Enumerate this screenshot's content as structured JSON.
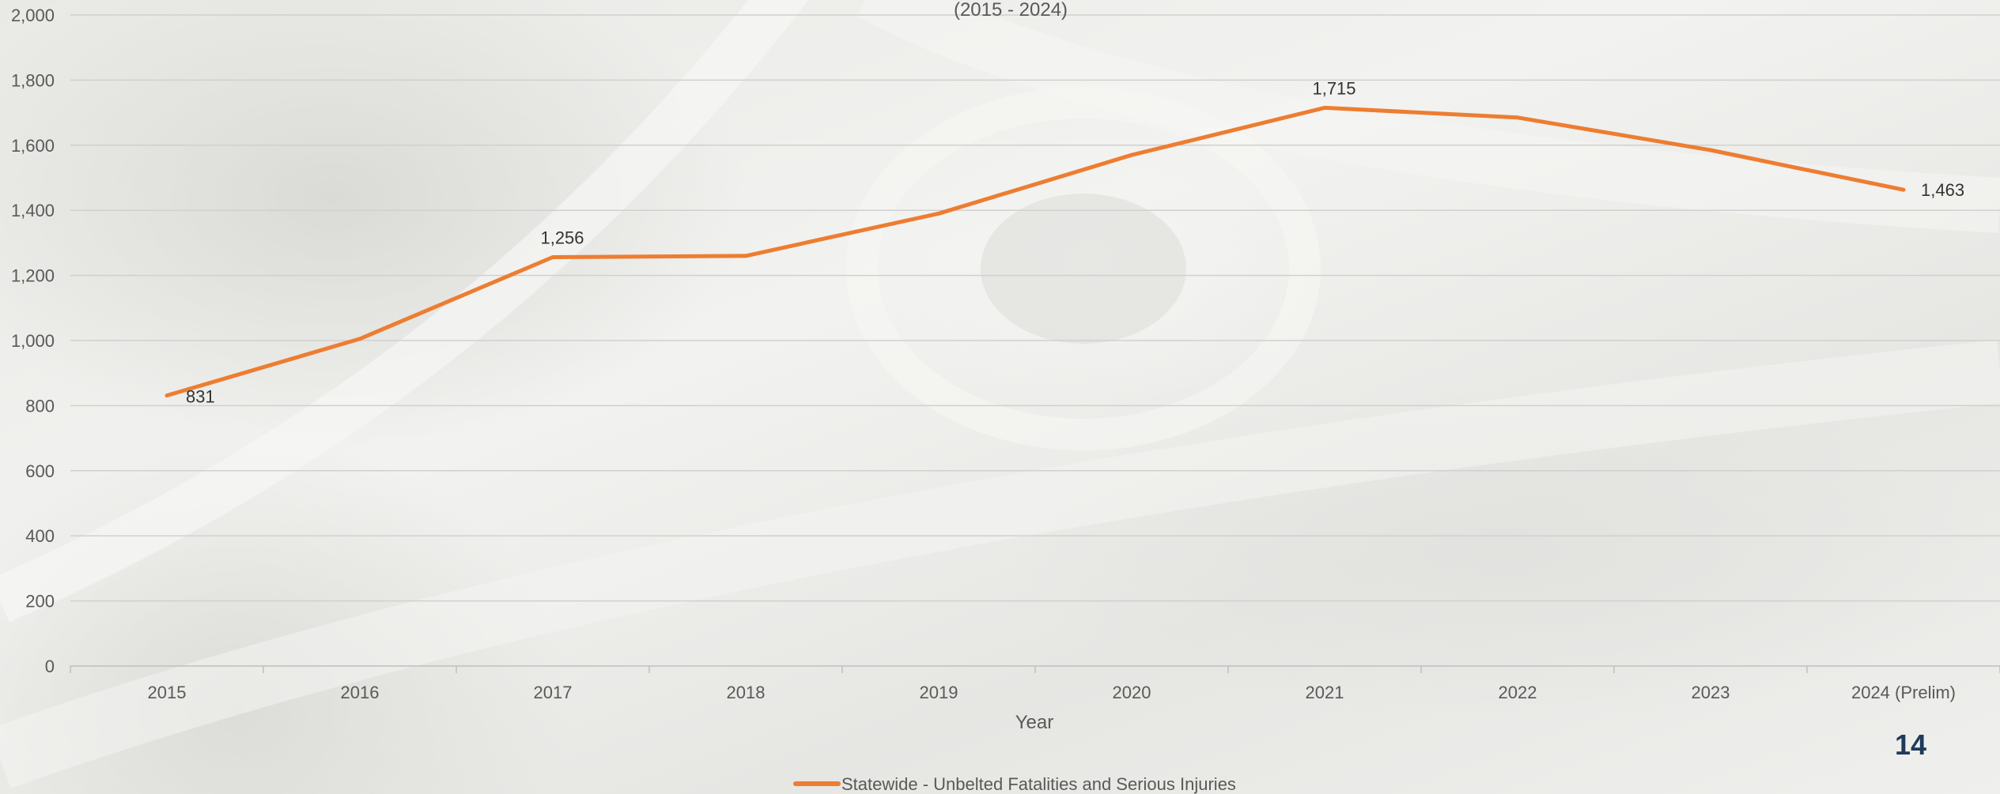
{
  "page": {
    "page_number": "14"
  },
  "chart_data": {
    "type": "line",
    "subtitle": "(2015 - 2024)",
    "xlabel": "Year",
    "ylabel": "",
    "categories": [
      "2015",
      "2016",
      "2017",
      "2018",
      "2019",
      "2020",
      "2021",
      "2022",
      "2023",
      "2024 (Prelim)"
    ],
    "series": [
      {
        "name": "Statewide - Unbelted Fatalities and Serious Injuries",
        "values": [
          831,
          1005,
          1256,
          1260,
          1390,
          1570,
          1715,
          1685,
          1585,
          1463
        ],
        "labels": [
          "831",
          "",
          "1,256",
          "",
          "",
          "",
          "1,715",
          "",
          "",
          "1,463"
        ],
        "color": "#ed7d31"
      }
    ],
    "ylim": [
      0,
      2000
    ],
    "yticks": [
      0,
      200,
      400,
      600,
      800,
      1000,
      1200,
      1400,
      1600,
      1800,
      2000
    ],
    "ytick_labels": [
      "0",
      "200",
      "400",
      "600",
      "800",
      "1,000",
      "1,200",
      "1,400",
      "1,600",
      "1,800",
      "2,000"
    ],
    "grid": true,
    "legend_position": "bottom"
  }
}
